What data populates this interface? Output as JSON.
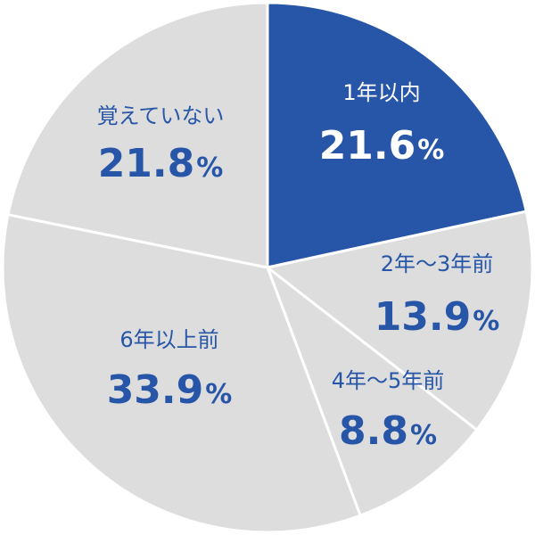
{
  "chart_data": {
    "type": "pie",
    "start_angle_deg": 0,
    "direction": "clockwise",
    "slices": [
      {
        "label": "1年以内",
        "value": 21.6,
        "value_text": "21.6",
        "unit": "%",
        "color": "#2756A8",
        "text_color": "#ffffff"
      },
      {
        "label": "2年〜3年前",
        "value": 13.9,
        "value_text": "13.9",
        "unit": "%",
        "color": "#DDDDDD",
        "text_color": "#2756A8"
      },
      {
        "label": "4年〜5年前",
        "value": 8.8,
        "value_text": "8.8",
        "unit": "%",
        "color": "#DDDDDD",
        "text_color": "#2756A8"
      },
      {
        "label": "6年以上前",
        "value": 33.9,
        "value_text": "33.9",
        "unit": "%",
        "color": "#DDDDDD",
        "text_color": "#2756A8"
      },
      {
        "label": "覚えていない",
        "value": 21.8,
        "value_text": "21.8",
        "unit": "%",
        "color": "#DDDDDD",
        "text_color": "#2756A8"
      }
    ],
    "separator_color": "#ffffff"
  }
}
